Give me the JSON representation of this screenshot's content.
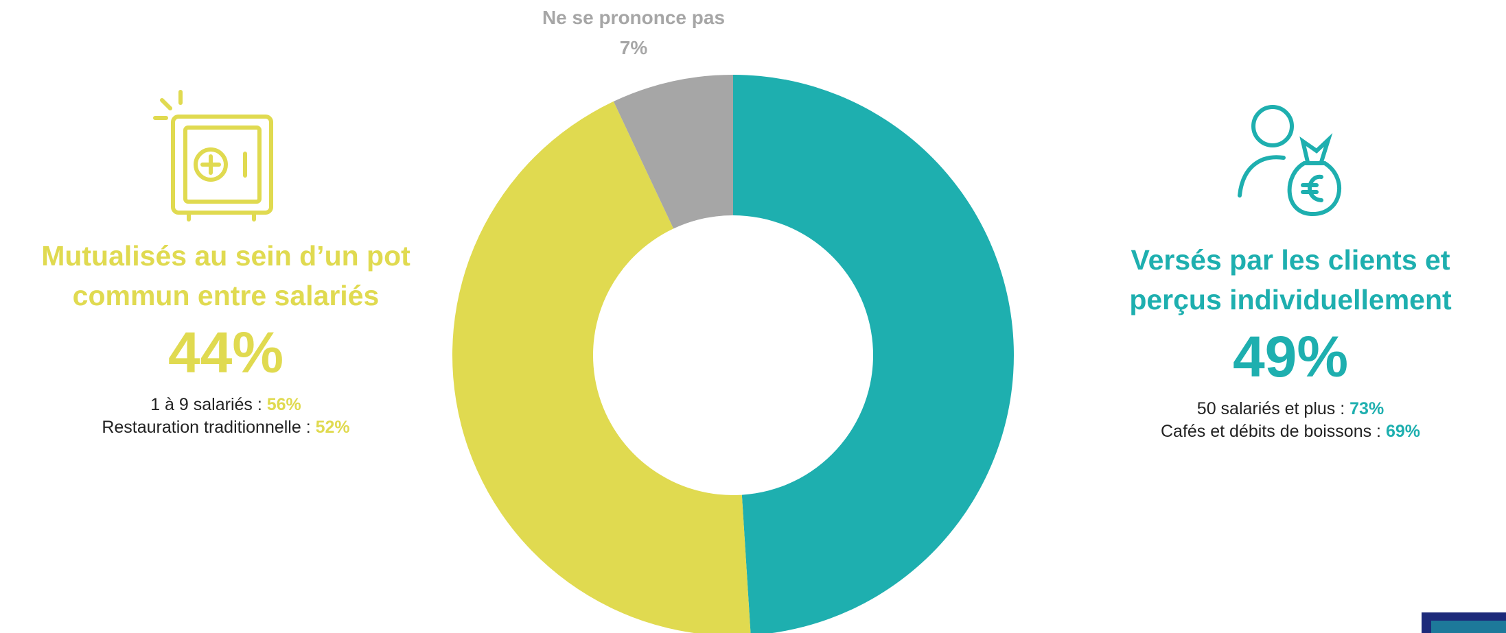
{
  "chart_data": {
    "type": "donut",
    "categories": [
      "Versés par les clients et\nperçus individuellement",
      "Mutualisés au sein d’un pot\ncommun entre salariés",
      "Ne se prononce pas"
    ],
    "values": [
      49,
      44,
      7
    ],
    "value_labels": [
      "49%",
      "44%",
      "7%"
    ],
    "colors": [
      "#1eafaf",
      "#e0da50",
      "#a6a6a6"
    ],
    "details": [
      [
        {
          "text": "50 salariés et plus :",
          "value": "73%"
        },
        {
          "text": "Cafés et débits de boissons :",
          "value": "69%"
        }
      ],
      [
        {
          "text": "1 à 9 salariés :",
          "value": "56%"
        },
        {
          "text": "Restauration traditionnelle :",
          "value": "52%"
        }
      ]
    ]
  }
}
